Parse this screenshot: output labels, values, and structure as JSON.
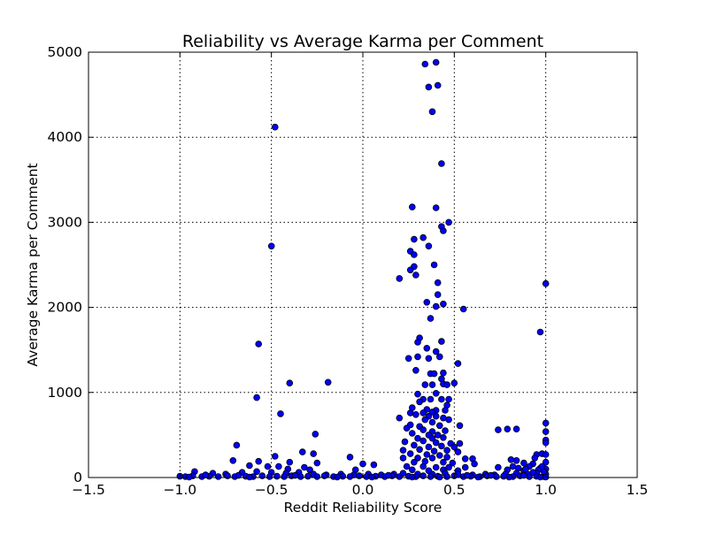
{
  "chart_data": {
    "type": "scatter",
    "title": "Reliability vs Average Karma per Comment",
    "xlabel": "Reddit Reliability Score",
    "ylabel": "Average Karma per Comment",
    "xlim": [
      -1.5,
      1.5
    ],
    "ylim": [
      0,
      5000
    ],
    "xticks": [
      -1.5,
      -1.0,
      -0.5,
      0.0,
      0.5,
      1.0,
      1.5
    ],
    "xtick_labels": [
      "−1.5",
      "−1.0",
      "−0.5",
      "0.0",
      "0.5",
      "1.0",
      "1.5"
    ],
    "yticks": [
      0,
      1000,
      2000,
      3000,
      4000,
      5000
    ],
    "ytick_labels": [
      "0",
      "1000",
      "2000",
      "3000",
      "4000",
      "5000"
    ],
    "grid": true,
    "marker_color": "#0000ff",
    "marker_edge": "#000000",
    "points": [
      [
        0.34,
        4860
      ],
      [
        0.4,
        4880
      ],
      [
        0.36,
        4590
      ],
      [
        0.41,
        4610
      ],
      [
        0.38,
        4300
      ],
      [
        -0.48,
        4120
      ],
      [
        0.43,
        3690
      ],
      [
        0.27,
        3180
      ],
      [
        0.4,
        3170
      ],
      [
        0.47,
        3000
      ],
      [
        0.43,
        2950
      ],
      [
        0.44,
        2900
      ],
      [
        0.33,
        2820
      ],
      [
        0.28,
        2800
      ],
      [
        0.36,
        2720
      ],
      [
        -0.5,
        2720
      ],
      [
        0.26,
        2660
      ],
      [
        0.28,
        2620
      ],
      [
        0.39,
        2500
      ],
      [
        0.28,
        2480
      ],
      [
        0.26,
        2440
      ],
      [
        0.29,
        2380
      ],
      [
        0.2,
        2340
      ],
      [
        0.41,
        2290
      ],
      [
        1.0,
        2280
      ],
      [
        0.41,
        2150
      ],
      [
        0.35,
        2060
      ],
      [
        0.44,
        2040
      ],
      [
        0.4,
        2010
      ],
      [
        0.55,
        1980
      ],
      [
        0.37,
        1870
      ],
      [
        0.97,
        1710
      ],
      [
        0.31,
        1640
      ],
      [
        0.3,
        1590
      ],
      [
        0.43,
        1600
      ],
      [
        -0.57,
        1570
      ],
      [
        0.35,
        1520
      ],
      [
        0.4,
        1480
      ],
      [
        0.25,
        1400
      ],
      [
        0.3,
        1420
      ],
      [
        0.36,
        1400
      ],
      [
        0.42,
        1420
      ],
      [
        0.52,
        1340
      ],
      [
        0.29,
        1260
      ],
      [
        0.37,
        1220
      ],
      [
        0.39,
        1220
      ],
      [
        0.44,
        1230
      ],
      [
        0.43,
        1160
      ],
      [
        0.44,
        1100
      ],
      [
        0.34,
        1090
      ],
      [
        0.38,
        1090
      ],
      [
        0.5,
        1110
      ],
      [
        -0.4,
        1110
      ],
      [
        -0.19,
        1120
      ],
      [
        0.46,
        1090
      ],
      [
        0.3,
        980
      ],
      [
        0.4,
        990
      ],
      [
        -0.58,
        940
      ],
      [
        0.33,
        920
      ],
      [
        0.37,
        920
      ],
      [
        0.43,
        920
      ],
      [
        0.31,
        890
      ],
      [
        0.47,
        920
      ],
      [
        0.46,
        850
      ],
      [
        0.27,
        820
      ],
      [
        0.35,
        800
      ],
      [
        0.4,
        790
      ],
      [
        0.38,
        770
      ],
      [
        0.26,
        760
      ],
      [
        0.33,
        760
      ],
      [
        0.45,
        790
      ],
      [
        -0.45,
        750
      ],
      [
        0.29,
        740
      ],
      [
        0.36,
        720
      ],
      [
        0.4,
        720
      ],
      [
        0.44,
        700
      ],
      [
        0.2,
        700
      ],
      [
        0.34,
        680
      ],
      [
        0.47,
        680
      ],
      [
        0.38,
        650
      ],
      [
        0.26,
        620
      ],
      [
        0.31,
        600
      ],
      [
        0.42,
        610
      ],
      [
        0.53,
        610
      ],
      [
        1.0,
        640
      ],
      [
        0.24,
        580
      ],
      [
        0.33,
        560
      ],
      [
        0.38,
        540
      ],
      [
        0.45,
        550
      ],
      [
        0.27,
        520
      ],
      [
        0.36,
        500
      ],
      [
        0.41,
        500
      ],
      [
        0.74,
        560
      ],
      [
        0.79,
        570
      ],
      [
        0.84,
        570
      ],
      [
        1.0,
        540
      ],
      [
        0.3,
        460
      ],
      [
        0.38,
        460
      ],
      [
        0.44,
        470
      ],
      [
        0.23,
        420
      ],
      [
        0.33,
        430
      ],
      [
        0.4,
        410
      ],
      [
        0.48,
        400
      ],
      [
        0.53,
        400
      ],
      [
        1.0,
        440
      ],
      [
        1.0,
        410
      ],
      [
        -0.26,
        510
      ],
      [
        -0.69,
        380
      ],
      [
        0.28,
        380
      ],
      [
        0.36,
        360
      ],
      [
        0.43,
        370
      ],
      [
        0.5,
        360
      ],
      [
        0.22,
        320
      ],
      [
        0.31,
        330
      ],
      [
        0.39,
        310
      ],
      [
        0.46,
        320
      ],
      [
        0.52,
        300
      ],
      [
        -0.33,
        300
      ],
      [
        -0.27,
        280
      ],
      [
        0.26,
        280
      ],
      [
        0.35,
        270
      ],
      [
        0.42,
        260
      ],
      [
        0.95,
        270
      ],
      [
        0.98,
        280
      ],
      [
        1.0,
        270
      ],
      [
        -0.07,
        240
      ],
      [
        -0.48,
        250
      ],
      [
        0.22,
        230
      ],
      [
        0.3,
        230
      ],
      [
        0.38,
        230
      ],
      [
        0.46,
        240
      ],
      [
        0.56,
        220
      ],
      [
        0.6,
        220
      ],
      [
        0.81,
        210
      ],
      [
        0.84,
        200
      ],
      [
        0.94,
        230
      ],
      [
        -0.71,
        200
      ],
      [
        -0.57,
        190
      ],
      [
        -0.4,
        180
      ],
      [
        -0.25,
        170
      ],
      [
        0.28,
        180
      ],
      [
        0.34,
        190
      ],
      [
        0.44,
        180
      ],
      [
        0.49,
        170
      ],
      [
        0.61,
        160
      ],
      [
        0.88,
        170
      ],
      [
        0.93,
        160
      ],
      [
        1.0,
        180
      ],
      [
        0.0,
        160
      ],
      [
        0.06,
        150
      ],
      [
        -0.62,
        140
      ],
      [
        -0.52,
        130
      ],
      [
        -0.46,
        130
      ],
      [
        -0.32,
        120
      ],
      [
        0.24,
        130
      ],
      [
        0.33,
        130
      ],
      [
        0.4,
        120
      ],
      [
        0.47,
        120
      ],
      [
        0.56,
        120
      ],
      [
        0.74,
        120
      ],
      [
        0.85,
        110
      ],
      [
        0.91,
        130
      ],
      [
        0.97,
        110
      ],
      [
        -0.41,
        100
      ],
      [
        -0.29,
        90
      ],
      [
        -0.04,
        90
      ],
      [
        0.27,
        90
      ],
      [
        0.36,
        80
      ],
      [
        0.44,
        90
      ],
      [
        0.52,
        80
      ],
      [
        0.79,
        90
      ],
      [
        0.88,
        80
      ],
      [
        0.96,
        90
      ],
      [
        1.0,
        100
      ],
      [
        -0.92,
        70
      ],
      [
        -0.82,
        50
      ],
      [
        -0.75,
        40
      ],
      [
        -0.66,
        60
      ],
      [
        -0.58,
        70
      ],
      [
        -0.5,
        60
      ],
      [
        -0.42,
        50
      ],
      [
        -0.35,
        60
      ],
      [
        -0.27,
        40
      ],
      [
        -0.2,
        30
      ],
      [
        -0.12,
        40
      ],
      [
        -0.05,
        30
      ],
      [
        0.03,
        40
      ],
      [
        0.1,
        30
      ],
      [
        0.17,
        40
      ],
      [
        0.22,
        50
      ],
      [
        0.3,
        40
      ],
      [
        0.38,
        40
      ],
      [
        0.45,
        50
      ],
      [
        0.52,
        40
      ],
      [
        0.6,
        30
      ],
      [
        0.67,
        40
      ],
      [
        0.72,
        30
      ],
      [
        0.78,
        40
      ],
      [
        0.84,
        50
      ],
      [
        0.9,
        40
      ],
      [
        0.95,
        50
      ],
      [
        1.0,
        40
      ],
      [
        -1.0,
        15
      ],
      [
        -0.97,
        10
      ],
      [
        -0.93,
        20
      ],
      [
        -0.88,
        10
      ],
      [
        -0.84,
        15
      ],
      [
        -0.79,
        10
      ],
      [
        -0.74,
        20
      ],
      [
        -0.7,
        10
      ],
      [
        -0.64,
        15
      ],
      [
        -0.6,
        10
      ],
      [
        -0.55,
        20
      ],
      [
        -0.51,
        10
      ],
      [
        -0.47,
        15
      ],
      [
        -0.43,
        10
      ],
      [
        -0.39,
        20
      ],
      [
        -0.34,
        10
      ],
      [
        -0.3,
        15
      ],
      [
        -0.25,
        10
      ],
      [
        -0.21,
        20
      ],
      [
        -0.16,
        10
      ],
      [
        -0.11,
        15
      ],
      [
        -0.07,
        10
      ],
      [
        -0.02,
        20
      ],
      [
        0.02,
        10
      ],
      [
        0.07,
        15
      ],
      [
        0.12,
        10
      ],
      [
        0.16,
        20
      ],
      [
        0.2,
        10
      ],
      [
        0.25,
        15
      ],
      [
        0.29,
        10
      ],
      [
        0.33,
        20
      ],
      [
        0.37,
        10
      ],
      [
        0.41,
        15
      ],
      [
        0.46,
        10
      ],
      [
        0.5,
        20
      ],
      [
        0.55,
        10
      ],
      [
        0.59,
        15
      ],
      [
        0.64,
        10
      ],
      [
        0.68,
        20
      ],
      [
        0.73,
        10
      ],
      [
        0.77,
        15
      ],
      [
        0.82,
        10
      ],
      [
        0.86,
        20
      ],
      [
        0.91,
        10
      ],
      [
        0.95,
        15
      ],
      [
        0.99,
        10
      ],
      [
        1.0,
        5
      ],
      [
        -0.95,
        5
      ],
      [
        -0.86,
        30
      ],
      [
        -0.68,
        25
      ],
      [
        -0.62,
        5
      ],
      [
        -0.37,
        25
      ],
      [
        -0.14,
        5
      ],
      [
        0.05,
        5
      ],
      [
        0.14,
        25
      ],
      [
        0.27,
        5
      ],
      [
        0.42,
        5
      ],
      [
        0.57,
        25
      ],
      [
        0.63,
        5
      ],
      [
        0.7,
        25
      ],
      [
        0.8,
        5
      ],
      [
        0.88,
        25
      ],
      [
        0.97,
        5
      ],
      [
        0.93,
        60
      ],
      [
        0.99,
        70
      ],
      [
        0.98,
        130
      ],
      [
        0.89,
        100
      ],
      [
        0.82,
        130
      ]
    ]
  }
}
